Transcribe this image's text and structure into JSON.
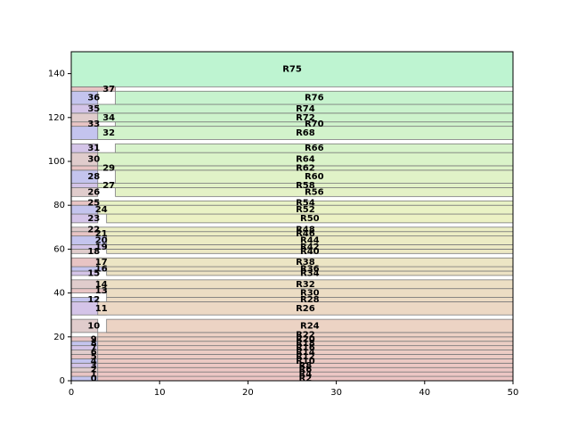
{
  "chart_data": {
    "type": "treemap-rectangles",
    "xlim": [
      0,
      50
    ],
    "ylim": [
      0,
      150
    ],
    "xticks": [
      0,
      10,
      20,
      30,
      40,
      50
    ],
    "yticks": [
      0,
      20,
      40,
      60,
      80,
      100,
      120,
      140
    ],
    "grid": false,
    "rects": [
      {
        "label": "0",
        "x0": 0,
        "x1": 3,
        "y0": 0,
        "y1": 2
      },
      {
        "label": "1",
        "x0": 0,
        "x1": 3,
        "y0": 2,
        "y1": 4
      },
      {
        "label": "2",
        "x0": 0,
        "x1": 3,
        "y0": 4,
        "y1": 6
      },
      {
        "label": "3",
        "x0": 0,
        "x1": 3,
        "y0": 6,
        "y1": 8
      },
      {
        "label": "4",
        "x0": 0,
        "x1": 3,
        "y0": 8,
        "y1": 10
      },
      {
        "label": "5",
        "x0": 0,
        "x1": 3,
        "y0": 10,
        "y1": 12
      },
      {
        "label": "6",
        "x0": 0,
        "x1": 3,
        "y0": 12,
        "y1": 14
      },
      {
        "label": "7",
        "x0": 0,
        "x1": 3,
        "y0": 14,
        "y1": 16
      },
      {
        "label": "8",
        "x0": 0,
        "x1": 3,
        "y0": 16,
        "y1": 18
      },
      {
        "label": "9",
        "x0": 0,
        "x1": 3,
        "y0": 18,
        "y1": 20
      },
      {
        "label": "10",
        "x0": 0,
        "x1": 3,
        "y0": 22,
        "y1": 28
      },
      {
        "label": "11",
        "x0": 0,
        "x1": 4,
        "y0": 30,
        "y1": 36
      },
      {
        "label": "12",
        "x0": 0,
        "x1": 3,
        "y0": 36,
        "y1": 38
      },
      {
        "label": "13",
        "x0": 0,
        "x1": 4,
        "y0": 40,
        "y1": 42
      },
      {
        "label": "14",
        "x0": 0,
        "x1": 4,
        "y0": 42,
        "y1": 46
      },
      {
        "label": "15",
        "x0": 0,
        "x1": 3,
        "y0": 48,
        "y1": 50
      },
      {
        "label": "16",
        "x0": 0,
        "x1": 4,
        "y0": 50,
        "y1": 52
      },
      {
        "label": "17",
        "x0": 0,
        "x1": 4,
        "y0": 52,
        "y1": 56
      },
      {
        "label": "18",
        "x0": 0,
        "x1": 3,
        "y0": 58,
        "y1": 60
      },
      {
        "label": "19",
        "x0": 0,
        "x1": 4,
        "y0": 60,
        "y1": 62
      },
      {
        "label": "20",
        "x0": 0,
        "x1": 4,
        "y0": 62,
        "y1": 66
      },
      {
        "label": "21",
        "x0": 0,
        "x1": 4,
        "y0": 66,
        "y1": 68
      },
      {
        "label": "22",
        "x0": 0,
        "x1": 3,
        "y0": 68,
        "y1": 70
      },
      {
        "label": "23",
        "x0": 0,
        "x1": 3,
        "y0": 72,
        "y1": 76
      },
      {
        "label": "24",
        "x0": 0,
        "x1": 4,
        "y0": 76,
        "y1": 80
      },
      {
        "label": "25",
        "x0": 0,
        "x1": 3,
        "y0": 80,
        "y1": 82
      },
      {
        "label": "26",
        "x0": 0,
        "x1": 3,
        "y0": 84,
        "y1": 88
      },
      {
        "label": "27",
        "x0": 0,
        "x1": 5,
        "y0": 88,
        "y1": 90
      },
      {
        "label": "28",
        "x0": 0,
        "x1": 3,
        "y0": 90,
        "y1": 96
      },
      {
        "label": "29",
        "x0": 0,
        "x1": 5,
        "y0": 96,
        "y1": 98
      },
      {
        "label": "30",
        "x0": 0,
        "x1": 3,
        "y0": 98,
        "y1": 104
      },
      {
        "label": "31",
        "x0": 0,
        "x1": 3,
        "y0": 104,
        "y1": 108
      },
      {
        "label": "32",
        "x0": 0,
        "x1": 5,
        "y0": 110,
        "y1": 116
      },
      {
        "label": "33",
        "x0": 0,
        "x1": 3,
        "y0": 116,
        "y1": 118
      },
      {
        "label": "34",
        "x0": 0,
        "x1": 5,
        "y0": 118,
        "y1": 122
      },
      {
        "label": "35",
        "x0": 0,
        "x1": 3,
        "y0": 122,
        "y1": 126
      },
      {
        "label": "36",
        "x0": 0,
        "x1": 3,
        "y0": 126,
        "y1": 132
      },
      {
        "label": "37",
        "x0": 0,
        "x1": 5,
        "y0": 132,
        "y1": 134
      },
      {
        "label": "R2",
        "x0": 3,
        "x1": 50,
        "y0": 0,
        "y1": 2
      },
      {
        "label": "R4",
        "x0": 3,
        "x1": 50,
        "y0": 2,
        "y1": 4
      },
      {
        "label": "R6",
        "x0": 3,
        "x1": 50,
        "y0": 4,
        "y1": 6
      },
      {
        "label": "R8",
        "x0": 3,
        "x1": 50,
        "y0": 6,
        "y1": 8
      },
      {
        "label": "R10",
        "x0": 3,
        "x1": 50,
        "y0": 8,
        "y1": 10
      },
      {
        "label": "R12",
        "x0": 3,
        "x1": 50,
        "y0": 10,
        "y1": 12
      },
      {
        "label": "R14",
        "x0": 3,
        "x1": 50,
        "y0": 12,
        "y1": 14
      },
      {
        "label": "R16",
        "x0": 3,
        "x1": 50,
        "y0": 14,
        "y1": 16
      },
      {
        "label": "R18",
        "x0": 3,
        "x1": 50,
        "y0": 16,
        "y1": 18
      },
      {
        "label": "R20",
        "x0": 3,
        "x1": 50,
        "y0": 18,
        "y1": 20
      },
      {
        "label": "R22",
        "x0": 3,
        "x1": 50,
        "y0": 20,
        "y1": 22
      },
      {
        "label": "R24",
        "x0": 4,
        "x1": 50,
        "y0": 22,
        "y1": 28
      },
      {
        "label": "R26",
        "x0": 3,
        "x1": 50,
        "y0": 30,
        "y1": 36
      },
      {
        "label": "R28",
        "x0": 4,
        "x1": 50,
        "y0": 36,
        "y1": 38
      },
      {
        "label": "R30",
        "x0": 4,
        "x1": 50,
        "y0": 38,
        "y1": 42
      },
      {
        "label": "R32",
        "x0": 3,
        "x1": 50,
        "y0": 42,
        "y1": 46
      },
      {
        "label": "R34",
        "x0": 4,
        "x1": 50,
        "y0": 48,
        "y1": 50
      },
      {
        "label": "R36",
        "x0": 4,
        "x1": 50,
        "y0": 50,
        "y1": 52
      },
      {
        "label": "R38",
        "x0": 3,
        "x1": 50,
        "y0": 52,
        "y1": 56
      },
      {
        "label": "R40",
        "x0": 4,
        "x1": 50,
        "y0": 58,
        "y1": 60
      },
      {
        "label": "R42",
        "x0": 4,
        "x1": 50,
        "y0": 60,
        "y1": 62
      },
      {
        "label": "R44",
        "x0": 4,
        "x1": 50,
        "y0": 62,
        "y1": 66
      },
      {
        "label": "R46",
        "x0": 3,
        "x1": 50,
        "y0": 66,
        "y1": 68
      },
      {
        "label": "R48",
        "x0": 3,
        "x1": 50,
        "y0": 68,
        "y1": 70
      },
      {
        "label": "R50",
        "x0": 4,
        "x1": 50,
        "y0": 72,
        "y1": 76
      },
      {
        "label": "R52",
        "x0": 3,
        "x1": 50,
        "y0": 76,
        "y1": 80
      },
      {
        "label": "R54",
        "x0": 3,
        "x1": 50,
        "y0": 80,
        "y1": 82
      },
      {
        "label": "R56",
        "x0": 5,
        "x1": 50,
        "y0": 84,
        "y1": 88
      },
      {
        "label": "R58",
        "x0": 3,
        "x1": 50,
        "y0": 88,
        "y1": 90
      },
      {
        "label": "R60",
        "x0": 5,
        "x1": 50,
        "y0": 90,
        "y1": 96
      },
      {
        "label": "R62",
        "x0": 3,
        "x1": 50,
        "y0": 96,
        "y1": 98
      },
      {
        "label": "R64",
        "x0": 3,
        "x1": 50,
        "y0": 98,
        "y1": 104
      },
      {
        "label": "R66",
        "x0": 5,
        "x1": 50,
        "y0": 104,
        "y1": 108
      },
      {
        "label": "R68",
        "x0": 3,
        "x1": 50,
        "y0": 110,
        "y1": 116
      },
      {
        "label": "R70",
        "x0": 5,
        "x1": 50,
        "y0": 116,
        "y1": 118
      },
      {
        "label": "R72",
        "x0": 3,
        "x1": 50,
        "y0": 118,
        "y1": 122
      },
      {
        "label": "R74",
        "x0": 3,
        "x1": 50,
        "y0": 122,
        "y1": 126
      },
      {
        "label": "R76",
        "x0": 5,
        "x1": 50,
        "y0": 126,
        "y1": 132
      },
      {
        "label": "R75",
        "x0": 0,
        "x1": 50,
        "y0": 134,
        "y1": 150
      }
    ]
  }
}
